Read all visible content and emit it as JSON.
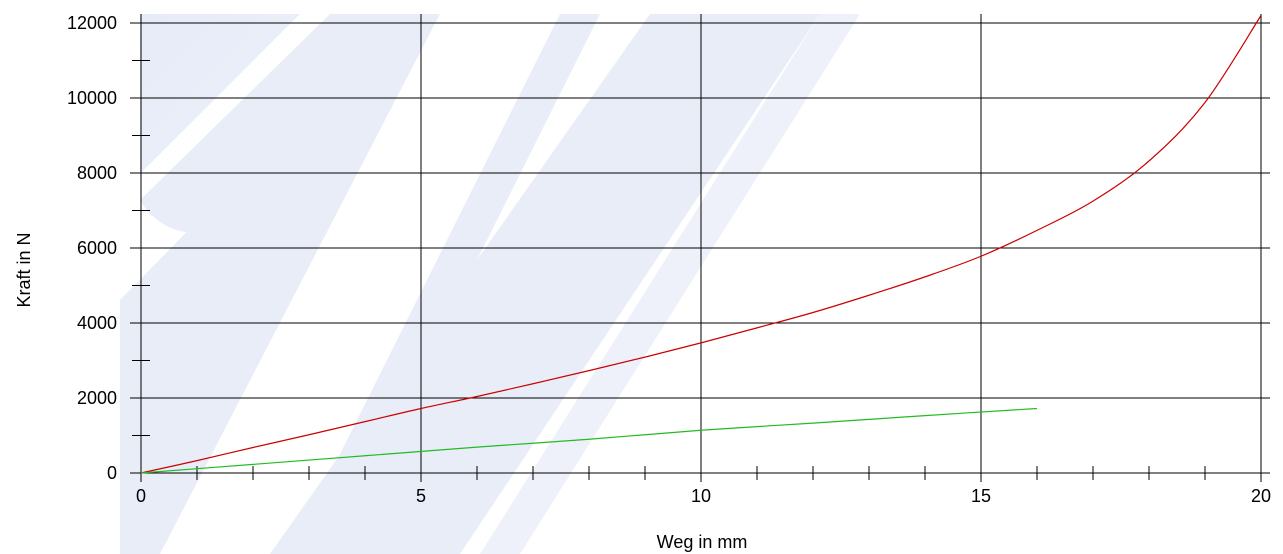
{
  "chart_data": {
    "type": "line",
    "title": "",
    "xlabel": "Weg in mm",
    "ylabel": "Kraft in N",
    "xlim": [
      0,
      20
    ],
    "ylim": [
      0,
      12000
    ],
    "x_ticks": [
      0,
      5,
      10,
      15,
      20
    ],
    "x_tick_labels": [
      "0",
      "5",
      "10",
      "15",
      "20"
    ],
    "y_ticks": [
      0,
      2000,
      4000,
      6000,
      8000,
      10000,
      12000
    ],
    "y_tick_labels": [
      "0",
      "2000",
      "4000",
      "6000",
      "8000",
      "10000",
      "12000"
    ],
    "x_minor_step": 1,
    "y_minor_step": 1000,
    "grid": true,
    "legend": "none",
    "series": [
      {
        "color": "#cc0000",
        "points": [
          [
            0,
            0
          ],
          [
            1,
            330
          ],
          [
            2,
            680
          ],
          [
            3,
            1020
          ],
          [
            4,
            1370
          ],
          [
            5,
            1720
          ],
          [
            6,
            2040
          ],
          [
            7,
            2380
          ],
          [
            8,
            2730
          ],
          [
            9,
            3090
          ],
          [
            10,
            3470
          ],
          [
            11,
            3870
          ],
          [
            12,
            4280
          ],
          [
            13,
            4740
          ],
          [
            14,
            5230
          ],
          [
            15,
            5780
          ],
          [
            16,
            6470
          ],
          [
            17,
            7250
          ],
          [
            18,
            8320
          ],
          [
            19,
            9880
          ],
          [
            20,
            12200
          ]
        ]
      },
      {
        "color": "#22bb22",
        "points": [
          [
            0,
            0
          ],
          [
            2,
            230
          ],
          [
            4,
            460
          ],
          [
            6,
            690
          ],
          [
            8,
            900
          ],
          [
            10,
            1140
          ],
          [
            12,
            1330
          ],
          [
            14,
            1530
          ],
          [
            16,
            1720
          ]
        ]
      }
    ]
  }
}
